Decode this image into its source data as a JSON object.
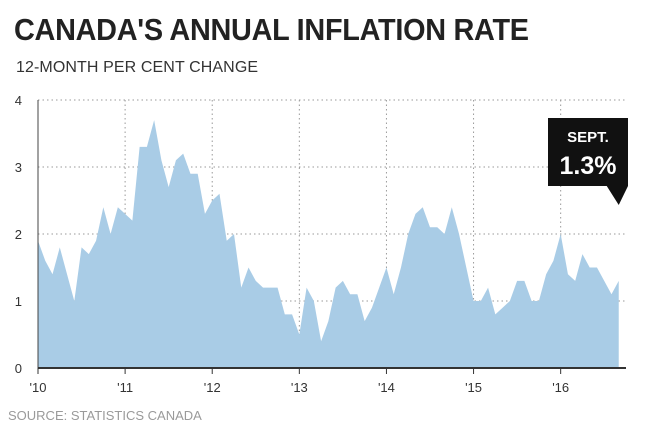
{
  "chart_data": {
    "type": "area",
    "title": "CANADA'S ANNUAL INFLATION RATE",
    "subtitle": "12-MONTH PER CENT CHANGE",
    "source": "SOURCE: STATISTICS CANADA",
    "xlim": [
      2010,
      2016.75
    ],
    "ylim": [
      0,
      4
    ],
    "y_ticks": [
      0,
      1,
      2,
      3,
      4
    ],
    "x_ticks": [
      {
        "value": 2010,
        "label": "'10"
      },
      {
        "value": 2011,
        "label": "'11"
      },
      {
        "value": 2012,
        "label": "'12"
      },
      {
        "value": 2013,
        "label": "'13"
      },
      {
        "value": 2014,
        "label": "'14"
      },
      {
        "value": 2015,
        "label": "'15"
      },
      {
        "value": 2016,
        "label": "'16"
      }
    ],
    "grid": "dotted",
    "fill_color": "#a9cce6",
    "series": [
      {
        "values": [
          1.9,
          1.6,
          1.4,
          1.8,
          1.4,
          1.0,
          1.8,
          1.7,
          1.9,
          2.4,
          2.0,
          2.4,
          2.3,
          2.2,
          3.3,
          3.3,
          3.7,
          3.1,
          2.7,
          3.1,
          3.2,
          2.9,
          2.9,
          2.3,
          2.5,
          2.6,
          1.9,
          2.0,
          1.2,
          1.5,
          1.3,
          1.2,
          1.2,
          1.2,
          0.8,
          0.8,
          0.5,
          1.2,
          1.0,
          0.4,
          0.7,
          1.2,
          1.3,
          1.1,
          1.1,
          0.7,
          0.9,
          1.2,
          1.5,
          1.1,
          1.5,
          2.0,
          2.3,
          2.4,
          2.1,
          2.1,
          2.0,
          2.4,
          2.0,
          1.5,
          1.0,
          1.0,
          1.2,
          0.8,
          0.9,
          1.0,
          1.3,
          1.3,
          1.0,
          1.0,
          1.4,
          1.6,
          2.0,
          1.4,
          1.3,
          1.7,
          1.5,
          1.5,
          1.3,
          1.1,
          1.3
        ]
      }
    ],
    "callout": {
      "label": "SEPT.",
      "value": "1.3%"
    }
  }
}
